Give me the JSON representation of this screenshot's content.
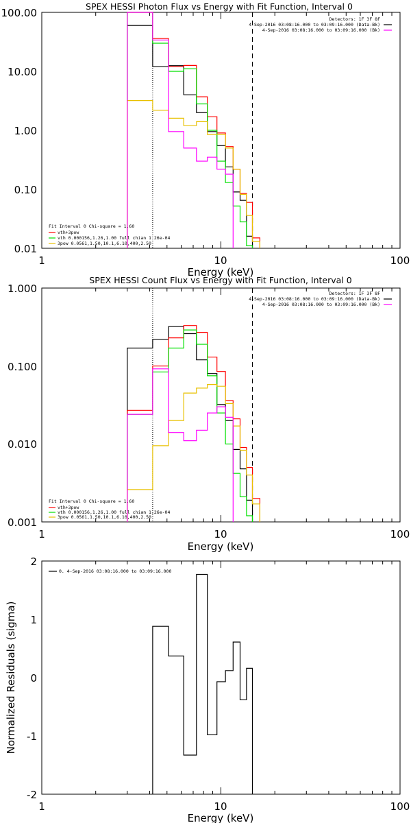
{
  "chart_data": [
    {
      "type": "line",
      "title": "SPEX HESSI Photon Flux vs Energy with Fit Function, Interval 0",
      "xlabel": "Energy (keV)",
      "ylabel": "",
      "xscale": "log",
      "yscale": "log",
      "xlim": [
        1,
        100
      ],
      "ylim": [
        0.01,
        100
      ],
      "xticks": [
        "1",
        "10",
        "100"
      ],
      "yticks": [
        "100.00",
        "10.00",
        "1.00",
        "0.10",
        "0.01"
      ],
      "legend_topright": [
        "Detectors: 1F 3F 8F",
        "4-Sep-2016 03:08:16.000 to 03:09:16.000 (Data-Bk)",
        "4-Sep-2016 03:08:16.000 to 03:09:16.000 (Bk)"
      ],
      "legend_bottomleft": [
        "Fit Interval 0   Chi-square = 1.60",
        "vth+3pow",
        "vth 0.000156,1.26,1.00   full chian 1.26e-04",
        "3pow 0.0561,1.50,10.1,6.10,400,2.50"
      ],
      "vlines": {
        "dotted": 4.16,
        "dashed": 15.0
      },
      "edges": [
        3.0,
        4.16,
        5.1,
        6.2,
        7.3,
        8.4,
        9.5,
        10.6,
        11.7,
        12.8,
        13.9,
        15.0,
        16.5
      ],
      "series": [
        {
          "color": "#000000",
          "values": [
            60,
            12,
            12.5,
            4,
            2,
            0.95,
            0.55,
            0.24,
            0.09,
            0.065,
            0.016
          ]
        },
        {
          "color": "#ff0000",
          "values": [
            100,
            36,
            12,
            12.6,
            3.7,
            1.7,
            0.9,
            0.53,
            0.22,
            0.085,
            0.06,
            0.015
          ]
        },
        {
          "color": "#00e000",
          "values": [
            100,
            30,
            10,
            11,
            2.8,
            1.0,
            0.3,
            0.13,
            0.052,
            0.028,
            0.011
          ]
        },
        {
          "color": "#e8c000",
          "values": [
            3.2,
            2.2,
            1.6,
            1.2,
            1.4,
            0.85,
            0.85,
            0.5,
            0.22,
            0.082,
            0.036,
            0.013
          ]
        },
        {
          "color": "#ff00ff",
          "values": [
            100,
            34,
            0.95,
            0.5,
            0.3,
            0.35,
            0.22,
            0.18
          ]
        }
      ]
    },
    {
      "type": "line",
      "title": "SPEX HESSI Count Flux vs Energy with Fit Function, Interval 0",
      "xlabel": "Energy (keV)",
      "ylabel": "",
      "xscale": "log",
      "yscale": "log",
      "xlim": [
        1,
        100
      ],
      "ylim": [
        0.001,
        1
      ],
      "xticks": [
        "1",
        "10",
        "100"
      ],
      "yticks": [
        "1.000",
        "0.100",
        "0.010",
        "0.001"
      ],
      "legend_topright": [
        "Detectors: 1F 3F 8F",
        "4-Sep-2016 03:08:16.000 to 03:09:16.000 (Data-Bk)",
        "4-Sep-2016 03:08:16.000 to 03:09:16.000 (Bk)"
      ],
      "legend_bottomleft": [
        "Fit Interval 0   Chi-square = 1.60",
        "vth+3pow",
        "vth 0.000156,1.26,1.00   full chian 1.26e-04",
        "3pow 0.0561,1.50,10.1,6.10,400,2.50"
      ],
      "vlines": {
        "dotted": 4.16,
        "dashed": 15.0
      },
      "edges": [
        3.0,
        4.16,
        5.1,
        6.2,
        7.3,
        8.4,
        9.5,
        10.6,
        11.7,
        12.8,
        13.9,
        15.0,
        16.5
      ],
      "series": [
        {
          "color": "#000000",
          "values": [
            0.17,
            0.22,
            0.32,
            0.26,
            0.12,
            0.08,
            0.032,
            0.02,
            0.0085,
            0.0048,
            0.0019
          ]
        },
        {
          "color": "#ff0000",
          "values": [
            0.027,
            0.1,
            0.23,
            0.33,
            0.27,
            0.13,
            0.085,
            0.036,
            0.021,
            0.009,
            0.005,
            0.002
          ]
        },
        {
          "color": "#00e000",
          "values": [
            0.024,
            0.084,
            0.17,
            0.29,
            0.19,
            0.075,
            0.025,
            0.01,
            0.0042,
            0.0021,
            0.0012
          ]
        },
        {
          "color": "#e8c000",
          "values": [
            0.0026,
            0.0095,
            0.02,
            0.045,
            0.052,
            0.058,
            0.055,
            0.033,
            0.017,
            0.0083,
            0.004,
            0.0017
          ]
        },
        {
          "color": "#ff00ff",
          "values": [
            0.024,
            0.092,
            0.014,
            0.011,
            0.015,
            0.025,
            0.03,
            0.022
          ]
        }
      ]
    },
    {
      "type": "line",
      "title": "",
      "xlabel": "Energy (keV)",
      "ylabel": "Normalized Residuals (sigma)",
      "xscale": "log",
      "yscale": "linear",
      "xlim": [
        1,
        100
      ],
      "ylim": [
        -2,
        2
      ],
      "xticks": [
        "1",
        "10",
        "100"
      ],
      "yticks": [
        "2",
        "1",
        "0",
        "-1",
        "-2"
      ],
      "legend": [
        "0. 4-Sep-2016 03:08:16.000 to 03:09:16.000"
      ],
      "edges": [
        4.16,
        5.1,
        6.2,
        7.3,
        8.4,
        9.5,
        10.6,
        11.7,
        12.8,
        13.9,
        15.0
      ],
      "series": [
        {
          "color": "#000000",
          "values": [
            0.88,
            0.37,
            -1.33,
            1.77,
            -0.98,
            -0.07,
            0.12,
            0.61,
            -0.38,
            0.16
          ]
        }
      ]
    }
  ]
}
